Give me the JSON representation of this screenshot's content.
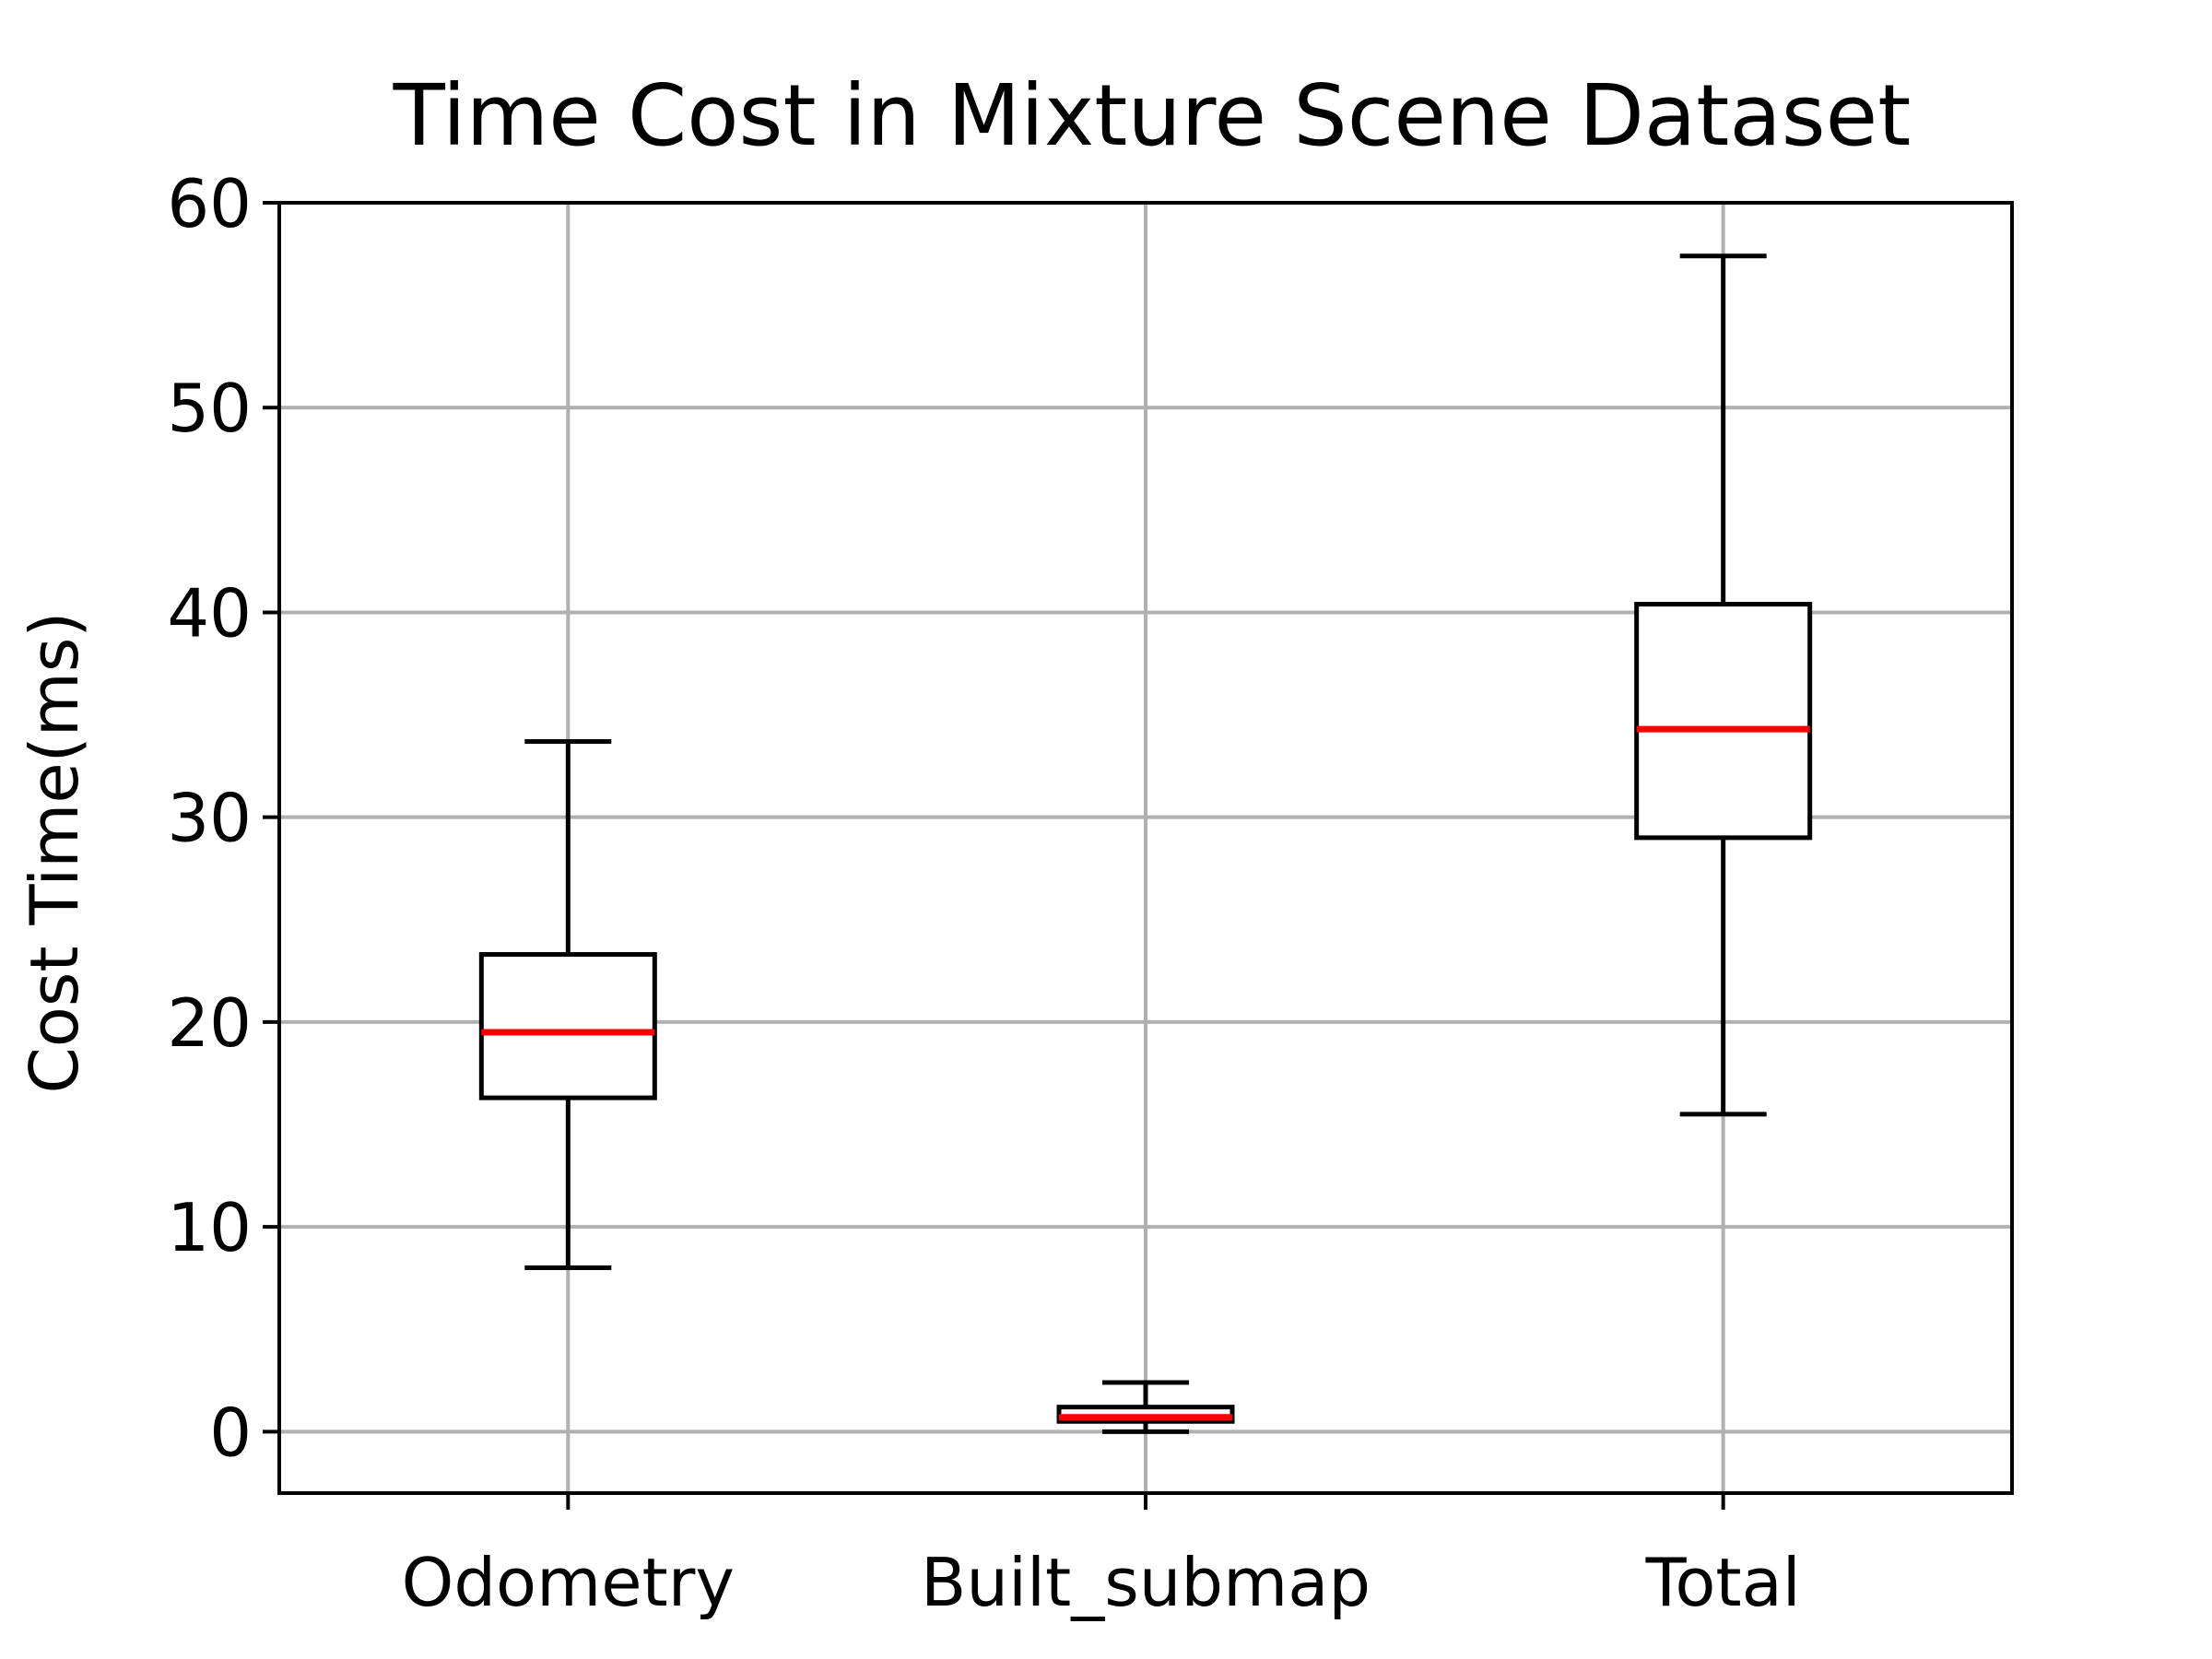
{
  "chart_data": {
    "type": "box",
    "title": "Time Cost in Mixture Scene Dataset",
    "xlabel": "",
    "ylabel": "Cost Time(ms)",
    "ylim": [
      -3,
      60
    ],
    "yticks": [
      0,
      10,
      20,
      30,
      40,
      50,
      60
    ],
    "grid": true,
    "categories": [
      "Odometry",
      "Built_submap",
      "Total"
    ],
    "boxes": [
      {
        "category": "Odometry",
        "whisker_low": 8.0,
        "q1": 16.3,
        "median": 19.5,
        "q3": 23.3,
        "whisker_high": 33.7
      },
      {
        "category": "Built_submap",
        "whisker_low": 0.0,
        "q1": 0.5,
        "median": 0.7,
        "q3": 1.2,
        "whisker_high": 2.4
      },
      {
        "category": "Total",
        "whisker_low": 15.5,
        "q1": 29.0,
        "median": 34.3,
        "q3": 40.4,
        "whisker_high": 57.4
      }
    ],
    "colors": {
      "box": "#000000",
      "median": "#ff0000",
      "grid": "#b0b0b0"
    }
  }
}
